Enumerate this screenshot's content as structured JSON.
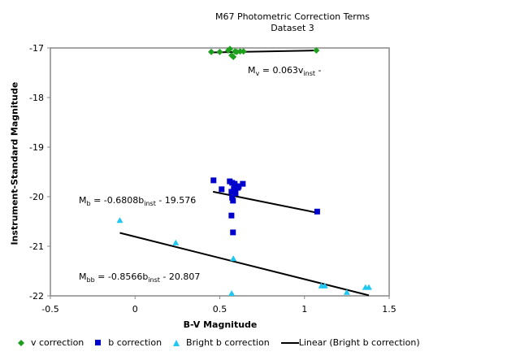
{
  "chart_data": {
    "type": "scatter",
    "title": "M67 Photometric Correction Terms",
    "subtitle": "Dataset 3",
    "xlabel": "B-V Magnitude",
    "ylabel": "Instrument-Standard Magnitude",
    "xlim": [
      -0.5,
      1.5
    ],
    "ylim": [
      -22,
      -17
    ],
    "xticks": [
      "-0.5",
      "0",
      "0.5",
      "1",
      "1.5"
    ],
    "yticks": [
      "-17",
      "-18",
      "-19",
      "-20",
      "-21",
      "-22"
    ],
    "grid": false,
    "legend_position": "bottom",
    "series": [
      {
        "name": "v correction",
        "color": "#1ea01e",
        "marker": "diamond",
        "points": [
          [
            0.45,
            -17.08
          ],
          [
            0.5,
            -17.08
          ],
          [
            0.55,
            -17.05
          ],
          [
            0.56,
            -17.02
          ],
          [
            0.57,
            -17.15
          ],
          [
            0.58,
            -17.18
          ],
          [
            0.59,
            -17.07
          ],
          [
            0.6,
            -17.08
          ],
          [
            0.62,
            -17.07
          ],
          [
            0.64,
            -17.07
          ],
          [
            1.07,
            -17.05
          ]
        ]
      },
      {
        "name": "b correction",
        "color": "#0000cc",
        "marker": "square",
        "points": [
          [
            0.463,
            -19.67
          ],
          [
            0.511,
            -19.85
          ],
          [
            0.559,
            -19.69
          ],
          [
            0.573,
            -19.72
          ],
          [
            0.588,
            -19.74
          ],
          [
            0.598,
            -19.79
          ],
          [
            0.583,
            -19.84
          ],
          [
            0.569,
            -19.9
          ],
          [
            0.593,
            -19.93
          ],
          [
            0.573,
            -20.02
          ],
          [
            0.578,
            -20.08
          ],
          [
            0.607,
            -19.82
          ],
          [
            0.612,
            -19.79
          ],
          [
            0.636,
            -19.74
          ],
          [
            0.569,
            -20.38
          ],
          [
            0.578,
            -20.72
          ],
          [
            1.075,
            -20.3
          ]
        ]
      },
      {
        "name": "Bright b correction",
        "color": "#1ec8f0",
        "marker": "triangle",
        "points": [
          [
            -0.09,
            -20.48
          ],
          [
            0.24,
            -20.93
          ],
          [
            0.58,
            -21.25
          ],
          [
            0.57,
            -21.95
          ],
          [
            1.1,
            -21.8
          ],
          [
            1.12,
            -21.8
          ],
          [
            1.25,
            -21.93
          ],
          [
            1.36,
            -21.83
          ],
          [
            1.38,
            -21.83
          ]
        ]
      }
    ],
    "trendlines": [
      {
        "name": "v trend",
        "points": [
          [
            0.45,
            -17.09
          ],
          [
            1.07,
            -17.05
          ]
        ]
      },
      {
        "name": "b trend",
        "points": [
          [
            0.46,
            -19.9
          ],
          [
            1.07,
            -20.32
          ]
        ]
      },
      {
        "name": "Linear (Bright b correction)",
        "points": [
          [
            -0.09,
            -20.73
          ],
          [
            1.38,
            -21.99
          ]
        ]
      }
    ],
    "annotations": {
      "v": {
        "m": "M",
        "sub1": "v",
        "eq": " = 0.063v",
        "sub2": "inst",
        "rest": " -"
      },
      "b": {
        "m": "M",
        "sub1": "b",
        "eq": " = -0.6808b",
        "sub2": "inst",
        "rest": " - 19.576"
      },
      "bb": {
        "m": "M",
        "sub1": "bb",
        "eq": " = -0.8566b",
        "sub2": "inst",
        "rest": " - 20.807"
      }
    },
    "legend": [
      "v correction",
      "b correction",
      "Bright b correction",
      "Linear (Bright b correction)"
    ]
  }
}
